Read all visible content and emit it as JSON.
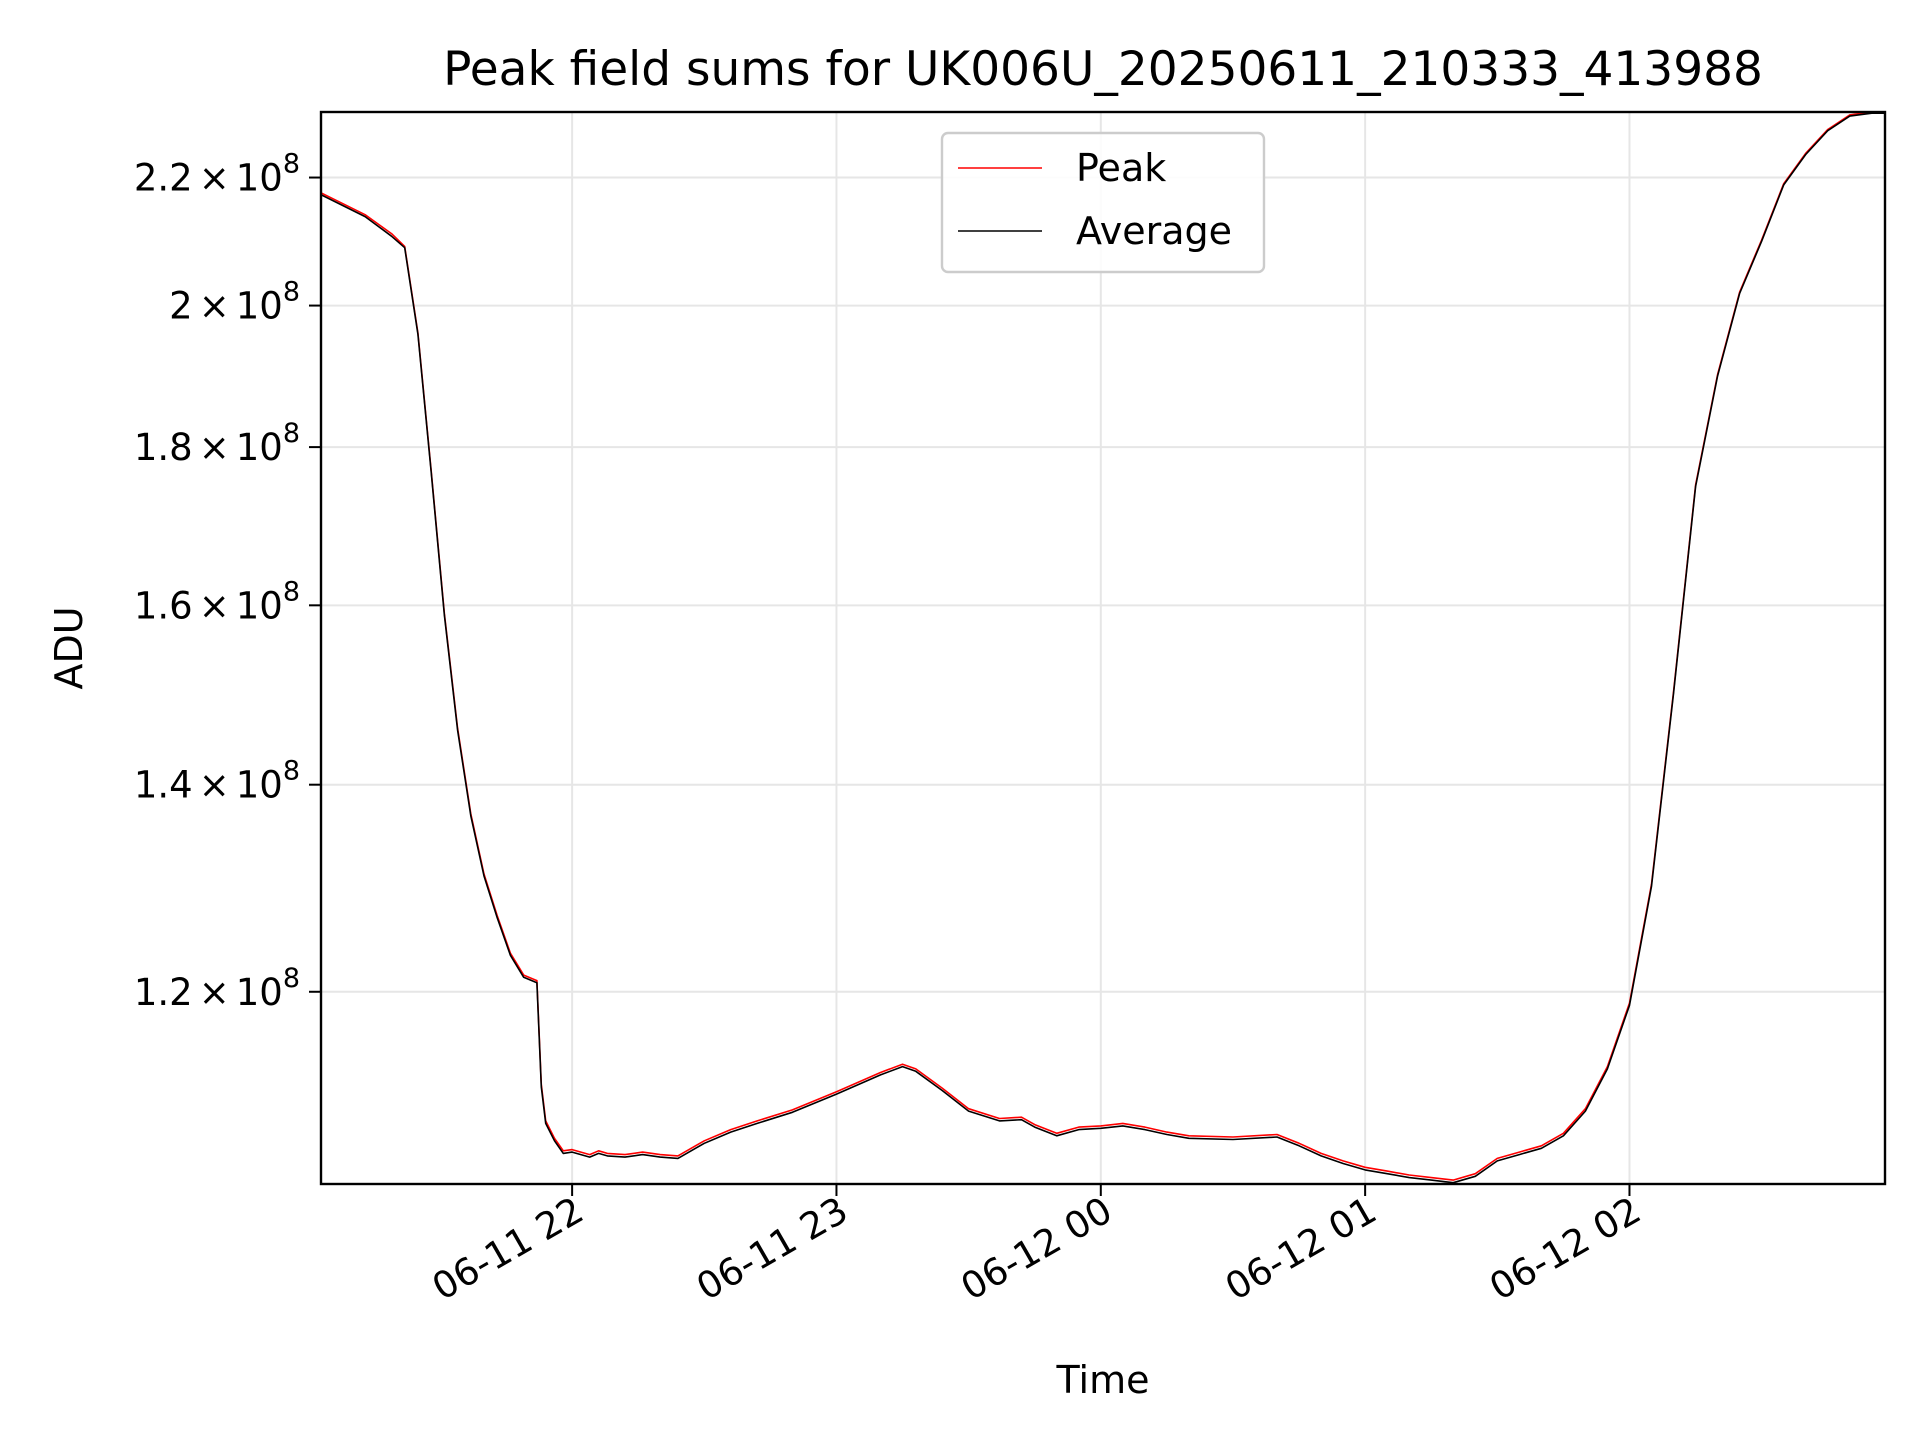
{
  "chart_data": {
    "type": "line",
    "title": "Peak field sums for UK006U_20250611_210333_413988",
    "xlabel": "Time",
    "ylabel": "ADU",
    "y_scale": "log",
    "grid": true,
    "legend_position": "top-center",
    "xlim": [
      "2025-06-11 21:03",
      "2025-06-12 02:58"
    ],
    "ylim": [
      104000000,
      231000000
    ],
    "x_ticks": [
      {
        "value": "2025-06-11 22:00",
        "label": "06-11 22"
      },
      {
        "value": "2025-06-11 23:00",
        "label": "06-11 23"
      },
      {
        "value": "2025-06-12 00:00",
        "label": "06-12 00"
      },
      {
        "value": "2025-06-12 01:00",
        "label": "06-12 01"
      },
      {
        "value": "2025-06-12 02:00",
        "label": "06-12 02"
      }
    ],
    "y_ticks": [
      {
        "value": 120000000,
        "mantissa": "1.2",
        "base": "10",
        "exp": "8"
      },
      {
        "value": 140000000,
        "mantissa": "1.4",
        "base": "10",
        "exp": "8"
      },
      {
        "value": 160000000,
        "mantissa": "1.6",
        "base": "10",
        "exp": "8"
      },
      {
        "value": 180000000,
        "mantissa": "1.8",
        "base": "10",
        "exp": "8"
      },
      {
        "value": 200000000,
        "mantissa": "2",
        "base": "10",
        "exp": "8"
      },
      {
        "value": 220000000,
        "mantissa": "2.2",
        "base": "10",
        "exp": "8"
      }
    ],
    "x": [
      "2025-06-11 21:03",
      "2025-06-11 21:13",
      "2025-06-11 21:19",
      "2025-06-11 21:22",
      "2025-06-11 21:25",
      "2025-06-11 21:28",
      "2025-06-11 21:31",
      "2025-06-11 21:34",
      "2025-06-11 21:37",
      "2025-06-11 21:40",
      "2025-06-11 21:43",
      "2025-06-11 21:46",
      "2025-06-11 21:49",
      "2025-06-11 21:52",
      "2025-06-11 21:53",
      "2025-06-11 21:54",
      "2025-06-11 21:56",
      "2025-06-11 21:58",
      "2025-06-11 22:00",
      "2025-06-11 22:04",
      "2025-06-11 22:06",
      "2025-06-11 22:08",
      "2025-06-11 22:12",
      "2025-06-11 22:16",
      "2025-06-11 22:20",
      "2025-06-11 22:24",
      "2025-06-11 22:28",
      "2025-06-11 22:30",
      "2025-06-11 22:36",
      "2025-06-11 22:42",
      "2025-06-11 22:50",
      "2025-06-11 23:00",
      "2025-06-11 23:10",
      "2025-06-11 23:15",
      "2025-06-11 23:18",
      "2025-06-11 23:24",
      "2025-06-11 23:30",
      "2025-06-11 23:37",
      "2025-06-11 23:42",
      "2025-06-11 23:45",
      "2025-06-11 23:50",
      "2025-06-11 23:55",
      "2025-06-12 00:00",
      "2025-06-12 00:05",
      "2025-06-12 00:10",
      "2025-06-12 00:15",
      "2025-06-12 00:20",
      "2025-06-12 00:30",
      "2025-06-12 00:40",
      "2025-06-12 00:45",
      "2025-06-12 00:50",
      "2025-06-12 00:55",
      "2025-06-12 01:00",
      "2025-06-12 01:05",
      "2025-06-12 01:10",
      "2025-06-12 01:15",
      "2025-06-12 01:20",
      "2025-06-12 01:25",
      "2025-06-12 01:30",
      "2025-06-12 01:35",
      "2025-06-12 01:40",
      "2025-06-12 01:45",
      "2025-06-12 01:50",
      "2025-06-12 01:55",
      "2025-06-12 02:00",
      "2025-06-12 02:05",
      "2025-06-12 02:10",
      "2025-06-12 02:15",
      "2025-06-12 02:20",
      "2025-06-12 02:25",
      "2025-06-12 02:30",
      "2025-06-12 02:35",
      "2025-06-12 02:40",
      "2025-06-12 02:45",
      "2025-06-12 02:50",
      "2025-06-12 02:55",
      "2025-06-12 02:58"
    ],
    "series": [
      {
        "name": "Peak",
        "color": "#ff0000",
        "values": [
          217500000,
          214000000,
          211000000,
          209000000,
          196000000,
          177000000,
          159000000,
          146000000,
          137000000,
          131000000,
          127000000,
          123500000,
          121500000,
          121000000,
          112000000,
          109000000,
          107600000,
          106600000,
          106700000,
          106300000,
          106600000,
          106400000,
          106300000,
          106500000,
          106300000,
          106200000,
          107000000,
          107400000,
          108300000,
          109000000,
          109900000,
          111400000,
          113000000,
          113700000,
          113300000,
          111700000,
          110000000,
          109200000,
          109300000,
          108700000,
          108000000,
          108500000,
          108600000,
          108800000,
          108500000,
          108100000,
          107800000,
          107700000,
          107900000,
          107200000,
          106400000,
          105800000,
          105300000,
          105000000,
          104700000,
          104500000,
          104300000,
          104800000,
          106000000,
          106500000,
          107000000,
          108000000,
          110000000,
          113500000,
          119000000,
          130000000,
          150000000,
          175000000,
          190000000,
          202000000,
          210000000,
          219000000,
          224000000,
          228000000,
          230500000,
          231000000,
          231000000
        ]
      },
      {
        "name": "Average",
        "color": "#000000",
        "values": [
          217200000,
          213700000,
          210600000,
          208800000,
          195800000,
          176800000,
          158800000,
          145800000,
          136800000,
          130800000,
          126800000,
          123300000,
          121300000,
          120800000,
          111800000,
          108800000,
          107400000,
          106400000,
          106500000,
          106100000,
          106400000,
          106200000,
          106100000,
          106300000,
          106100000,
          106000000,
          106800000,
          107200000,
          108100000,
          108800000,
          109700000,
          111200000,
          112800000,
          113500000,
          113100000,
          111500000,
          109800000,
          109000000,
          109100000,
          108500000,
          107800000,
          108300000,
          108400000,
          108600000,
          108300000,
          107900000,
          107600000,
          107500000,
          107700000,
          107000000,
          106200000,
          105600000,
          105100000,
          104800000,
          104500000,
          104300000,
          104100000,
          104600000,
          105800000,
          106300000,
          106800000,
          107800000,
          109800000,
          113300000,
          118800000,
          129800000,
          149800000,
          174800000,
          189800000,
          201800000,
          209800000,
          218800000,
          223800000,
          227800000,
          230300000,
          230800000,
          230800000
        ]
      }
    ]
  }
}
